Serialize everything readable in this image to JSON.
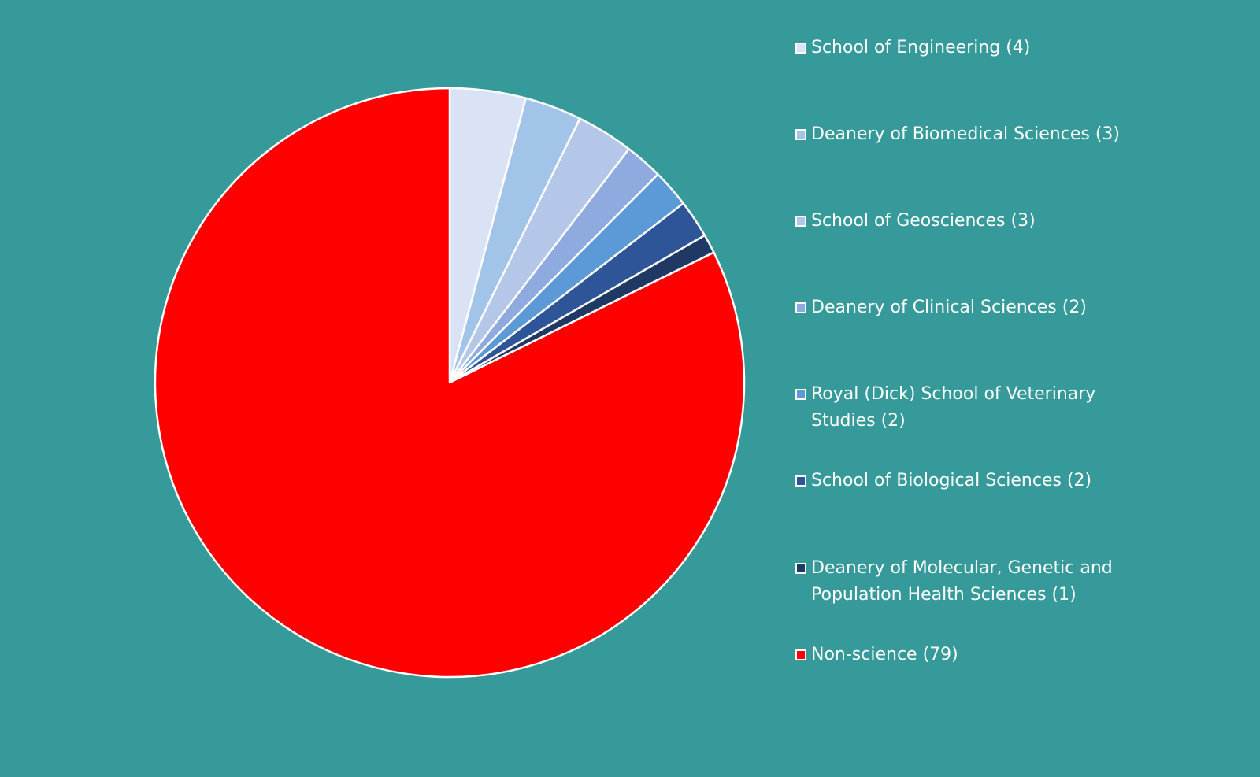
{
  "chart_data": {
    "type": "pie",
    "title": "",
    "background": "#359a99",
    "legend_position": "right",
    "slices": [
      {
        "label": "School of Engineering (4)",
        "value": 4,
        "color": "#dae3f5"
      },
      {
        "label": "Deanery of Biomedical Sciences (3)",
        "value": 3,
        "color": "#a2c4e8"
      },
      {
        "label": "School of Geosciences (3)",
        "value": 3,
        "color": "#b5c7e8"
      },
      {
        "label": "Deanery of Clinical Sciences (2)",
        "value": 2,
        "color": "#8faadf"
      },
      {
        "label": "Royal (Dick) School of Veterinary Studies (2)",
        "value": 2,
        "color": "#5b9ad6"
      },
      {
        "label": "School of Biological Sciences (2)",
        "value": 2,
        "color": "#2e5597"
      },
      {
        "label": "Deanery of Molecular, Genetic and Population Health Sciences (1)",
        "value": 1,
        "color": "#203864"
      },
      {
        "label": "Non-science (79)",
        "value": 79,
        "color": "#ff0000"
      }
    ]
  }
}
